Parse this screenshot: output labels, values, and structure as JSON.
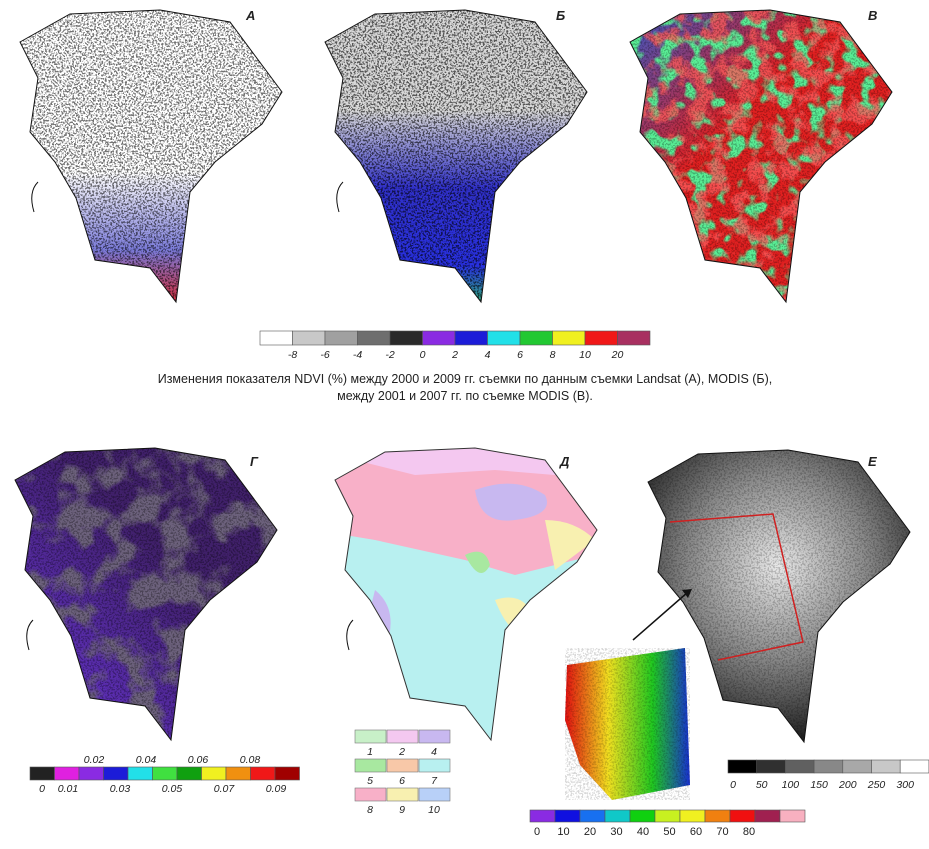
{
  "panels": [
    "А",
    "Б",
    "В",
    "Г",
    "Д",
    "Е"
  ],
  "caption": [
    "Изменения показателя NDVI (%) между 2000 и 2009 гг. съемки по данным съемки  Landsat (А), MODIS (Б),",
    "между 2001 и 2007 гг. по съемке MODIS (В)."
  ],
  "legends": {
    "ndvi_change": {
      "labels": [
        "-8",
        "-6",
        "-4",
        "-2",
        "0",
        "2",
        "4",
        "6",
        "8",
        "10",
        "20"
      ],
      "colors": [
        "#ffffff",
        "#c8c8c8",
        "#a0a0a0",
        "#6e6e6e",
        "#2a2a2a",
        "#8a2be2",
        "#1c1cd8",
        "#22e0e8",
        "#22c832",
        "#f0f020",
        "#f01818",
        "#a83060"
      ]
    },
    "ndvi_index": {
      "labels": [
        "0",
        "0.01",
        "0.02",
        "0.03",
        "0.04",
        "0.05",
        "0.06",
        "0.07",
        "0.08",
        "0.09"
      ],
      "colors": [
        "#222222",
        "#e020e0",
        "#8a2be2",
        "#1c1cd8",
        "#22e0e8",
        "#40e040",
        "#10a010",
        "#f0f020",
        "#f09010",
        "#f01818",
        "#a00000"
      ]
    },
    "zones": {
      "labels": [
        "1",
        "2",
        "4",
        "5",
        "6",
        "7",
        "8",
        "9",
        "10"
      ],
      "colors": [
        "#c8f0c8",
        "#f4c8f0",
        "#c8b8f0",
        "#a8e8a0",
        "#f8c8a8",
        "#b8f0f0",
        "#f8b0c8",
        "#f8f0b0",
        "#b8d0f8"
      ]
    },
    "elevation": {
      "labels": [
        "0",
        "50",
        "100",
        "150",
        "200",
        "250",
        "300"
      ],
      "colors": [
        "#000000",
        "#303030",
        "#606060",
        "#888888",
        "#a8a8a8",
        "#c8c8c8",
        "#ffffff"
      ]
    },
    "inset": {
      "labels": [
        "0",
        "10",
        "20",
        "30",
        "40",
        "50",
        "60",
        "70",
        "80"
      ],
      "colors": [
        "#8a2be2",
        "#1010e0",
        "#1870f0",
        "#10c8c8",
        "#10d010",
        "#c8f020",
        "#f0f020",
        "#f08010",
        "#f01010",
        "#a02050",
        "#f8b0c0"
      ]
    }
  }
}
